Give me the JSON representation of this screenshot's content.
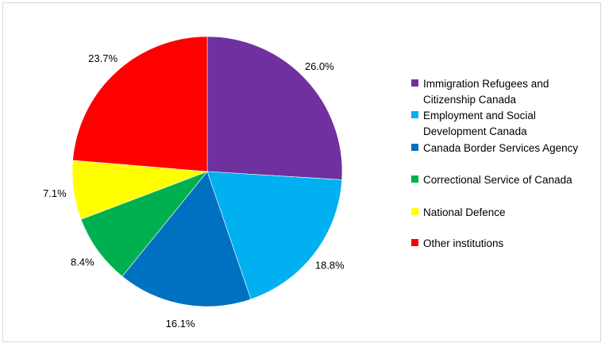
{
  "chart_data": {
    "type": "pie",
    "title": "",
    "start_angle_deg": 0,
    "direction": "clockwise",
    "legend_position": "right",
    "slices": [
      {
        "label": "Immigration Refugees and Citizenship Canada",
        "value": 26.0,
        "display": "26.0%",
        "color": "#7030a0"
      },
      {
        "label": "Employment and Social Development Canada",
        "value": 18.8,
        "display": "18.8%",
        "color": "#00b0f0"
      },
      {
        "label": "Canada Border Services Agency",
        "value": 16.1,
        "display": "16.1%",
        "color": "#0070c0"
      },
      {
        "label": "Correctional Service of Canada",
        "value": 8.4,
        "display": "8.4%",
        "color": "#00b050"
      },
      {
        "label": "National Defence",
        "value": 7.1,
        "display": "7.1%",
        "color": "#ffff00"
      },
      {
        "label": "Other institutions",
        "value": 23.7,
        "display": "23.7%",
        "color": "#ff0000"
      }
    ]
  }
}
